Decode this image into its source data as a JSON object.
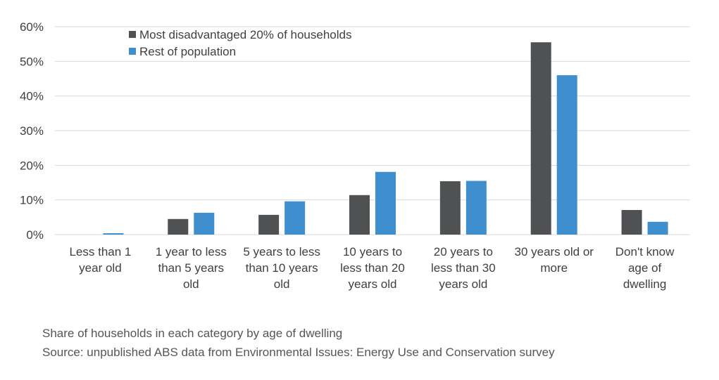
{
  "chart_data": {
    "type": "bar",
    "categories": [
      [
        "Less than 1",
        "year old"
      ],
      [
        "1 year to less",
        "than 5 years",
        "old"
      ],
      [
        "5 years to less",
        "than 10 years",
        "old"
      ],
      [
        "10 years to",
        "less than 20",
        "years old"
      ],
      [
        "20 years to",
        "less than 30",
        "years old"
      ],
      [
        "30 years old or",
        "more"
      ],
      [
        "Don't know",
        "age of",
        "dwelling"
      ]
    ],
    "series": [
      {
        "name": "Most disadvantaged 20% of households",
        "color": "#505153",
        "values": [
          0,
          4.5,
          5.7,
          11.4,
          15.4,
          55.5,
          7.1
        ]
      },
      {
        "name": "Rest of population",
        "color": "#3f8fcf",
        "values": [
          0.4,
          6.3,
          9.6,
          18.1,
          15.5,
          46.0,
          3.7
        ]
      }
    ],
    "ylim": [
      0,
      60
    ],
    "yticks": [
      "0%",
      "10%",
      "20%",
      "30%",
      "40%",
      "50%",
      "60%"
    ],
    "grid": true,
    "legend_position": "top-left"
  },
  "notes": {
    "caption": "Share of households in each category by age of dwelling",
    "source": "Source: unpublished ABS data from Environmental Issues: Energy Use and Conservation survey"
  }
}
